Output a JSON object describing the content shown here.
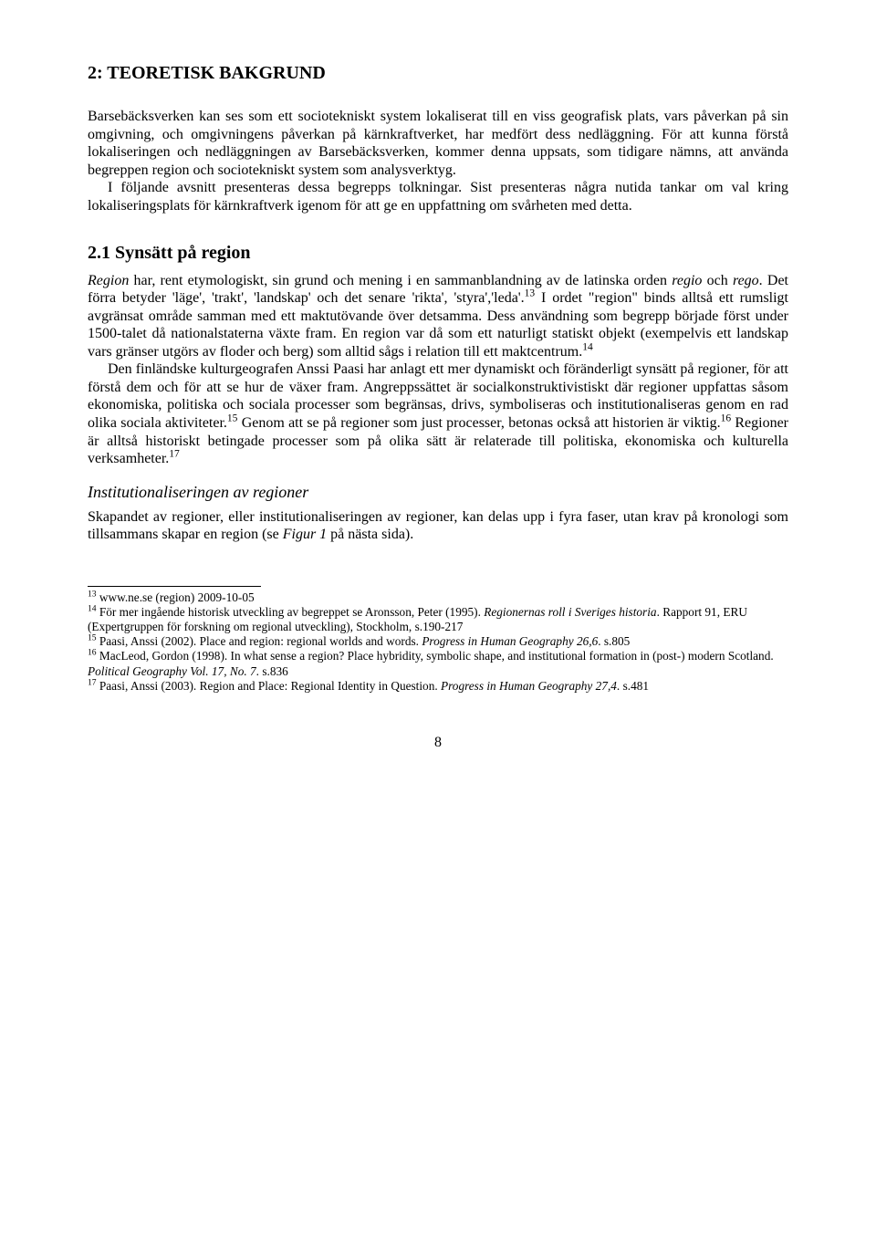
{
  "chapter_title": "2:  TEORETISK BAKGRUND",
  "para1_a": "Barsebäcksverken kan ses som ett sociotekniskt system lokaliserat till en viss geografisk plats, vars påverkan på sin omgivning, och omgivningens påverkan på kärnkraftverket, har medfört dess nedläggning. För att kunna förstå lokaliseringen och nedläggningen av Barsebäcksverken, kommer denna uppsats, som tidigare nämns, att använda begreppen region och sociotekniskt system som analysverktyg.",
  "para1_b": "I följande avsnitt presenteras dessa begrepps tolkningar. Sist presenteras några nutida tankar om val kring lokaliseringsplats för kärnkraftverk igenom för att ge en uppfattning om svårheten med detta.",
  "section_2_1": "2.1 Synsätt på region",
  "p21_a_pre": "Region",
  "p21_a_mid": " har, rent etymologiskt, sin grund och mening i en sammanblandning av de latinska orden ",
  "p21_a_regio": "regio",
  "p21_a_och": " och ",
  "p21_a_rego": "rego",
  "p21_a_post": ". Det förra betyder 'läge', 'trakt', 'landskap' och det senare 'rikta', 'styra','leda'.",
  "sup13": "13",
  "p21_a_tail": " I ordet \"region\" binds alltså ett rumsligt avgränsat område samman med ett maktutövande över detsamma. Dess användning som begrepp började först under 1500-talet då nationalstaterna växte fram. En region var då som ett naturligt statiskt objekt (exempelvis ett landskap vars gränser utgörs av floder och berg) som alltid sågs i relation till ett maktcentrum.",
  "sup14": "14",
  "p21_b_head": "Den finländske kulturgeografen Anssi Paasi har anlagt ett mer dynamiskt och föränderligt synsätt på regioner, för att förstå dem och för att se hur de växer fram. Angreppssättet är socialkonstruktivistiskt där regioner uppfattas såsom ekonomiska, politiska och sociala processer som begränsas, drivs, symboliseras och institutionaliseras genom en rad olika sociala aktiviteter.",
  "sup15": "15",
  "p21_b_mid": " Genom att se på regioner som just processer, betonas också att historien är viktig.",
  "sup16": "16",
  "p21_b_tail": " Regioner är alltså historiskt betingade processer som på olika sätt är relaterade till politiska, ekonomiska och kulturella verksamheter.",
  "sup17": "17",
  "subsection_inst": "Institutionaliseringen av regioner",
  "p_inst_a": "Skapandet av regioner, eller institutionaliseringen av regioner, kan delas upp i fyra faser, utan krav på kronologi som tillsammans skapar en region (se ",
  "p_inst_fig": "Figur 1",
  "p_inst_b": " på nästa sida).",
  "fn13_sup": "13",
  "fn13": " www.ne.se (region) 2009-10-05",
  "fn14_sup": "14",
  "fn14_a": " För mer ingående historisk utveckling av begreppet se Aronsson, Peter (1995). ",
  "fn14_it": "Regionernas roll i Sveriges historia",
  "fn14_b": ". Rapport 91, ERU (Expertgruppen för forskning om regional utveckling), Stockholm, s.190-217",
  "fn15_sup": "15",
  "fn15_a": " Paasi, Anssi (2002). Place and region: regional worlds and words. ",
  "fn15_it": "Progress in Human Geography 26,6",
  "fn15_b": ". s.805",
  "fn16_sup": "16",
  "fn16_a": " MacLeod, Gordon (1998). In what sense a region? Place hybridity, symbolic shape, and institutional formation in (post-) modern Scotland. ",
  "fn16_it": "Political Geography Vol. 17, No. 7",
  "fn16_b": ". s.836",
  "fn17_sup": "17",
  "fn17_a": " Paasi, Anssi (2003). Region and Place: Regional Identity in Question. ",
  "fn17_it": "Progress in Human Geography 27,4",
  "fn17_b": ". s.481",
  "page_number": "8"
}
